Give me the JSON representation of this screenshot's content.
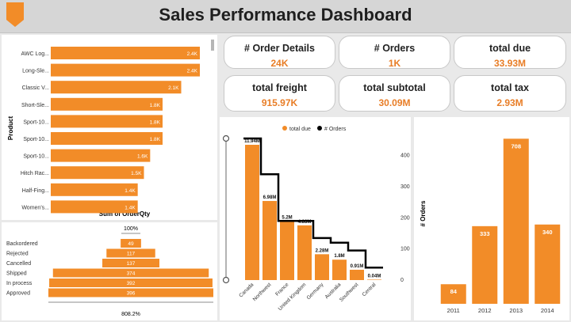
{
  "dashboard": {
    "title": "Sales Performance Dashboard"
  },
  "kpis": [
    {
      "label": "# Order Details",
      "value": "24K"
    },
    {
      "label": "# Orders",
      "value": "1K"
    },
    {
      "label": "total due",
      "value": "33.93M"
    },
    {
      "label": "total freight",
      "value": "915.97K"
    },
    {
      "label": "total subtotal",
      "value": "30.09M"
    },
    {
      "label": "total tax",
      "value": "2.93M"
    }
  ],
  "colors": {
    "accent": "#f28c28",
    "line": "#000000",
    "kpi_value": "#e87d26"
  },
  "chart_data": [
    {
      "type": "bar",
      "orientation": "horizontal",
      "ylabel": "Product",
      "xlabel": "Sum of OrderQty",
      "categories": [
        "AWC Log...",
        "Long-Sle...",
        "Classic V...",
        "Short-Sle...",
        "Sport-10...",
        "Sport-10...",
        "Sport-10...",
        "Hitch Rac...",
        "Half-Fing...",
        "Women's..."
      ],
      "values": [
        2.4,
        2.4,
        2.1,
        1.8,
        1.8,
        1.8,
        1.6,
        1.5,
        1.4,
        1.4
      ],
      "labels": [
        "2.4K",
        "2.4K",
        "2.1K",
        "1.8K",
        "1.8K",
        "1.8K",
        "1.6K",
        "1.5K",
        "1.4K",
        "1.4K"
      ],
      "unit": "K"
    },
    {
      "type": "funnel",
      "categories": [
        "Backordered",
        "Rejected",
        "Cancelled",
        "Shipped",
        "In process",
        "Approved"
      ],
      "values": [
        49,
        117,
        137,
        374,
        392,
        396
      ],
      "top_label": "100%",
      "bottom_label": "808.2%"
    },
    {
      "type": "bar-line",
      "legend": [
        "total due",
        "# Orders"
      ],
      "legend_position": "top",
      "categories": [
        "Canada",
        "Northwest",
        "France",
        "United Kingdom",
        "Germany",
        "Australia",
        "Southwest",
        "Central"
      ],
      "bar_series": {
        "name": "total due",
        "values": [
          11.94,
          6.98,
          5.2,
          4.83,
          2.28,
          1.8,
          0.91,
          0.04
        ],
        "labels": [
          "11.94M",
          "6.98M",
          "5.2M",
          "4.83M",
          "2.28M",
          "1.8M",
          "0.91M",
          "0.04M"
        ]
      },
      "line_series": {
        "name": "# Orders",
        "values": [
          455,
          340,
          190,
          190,
          135,
          120,
          95,
          40
        ],
        "shape": "step"
      },
      "y2_ticks": [
        "0",
        "100",
        "200",
        "300",
        "400"
      ],
      "y2lim": [
        0,
        460
      ]
    },
    {
      "type": "bar",
      "ylabel": "# Orders",
      "categories": [
        "2011",
        "2012",
        "2013",
        "2014"
      ],
      "values": [
        84,
        333,
        708,
        340
      ],
      "ylim": [
        0,
        760
      ]
    }
  ]
}
